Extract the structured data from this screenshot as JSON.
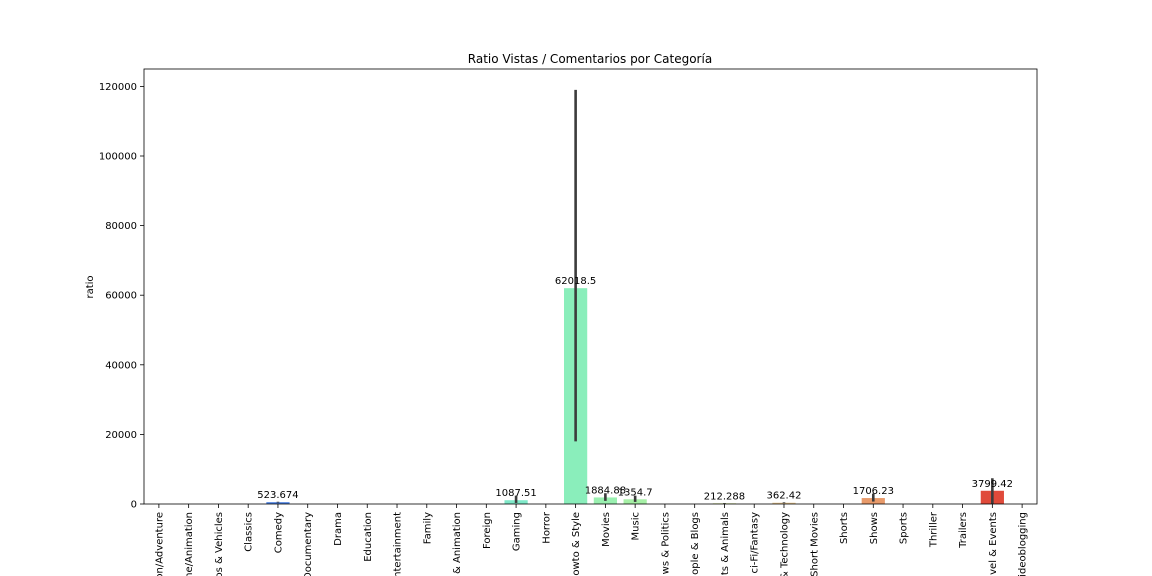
{
  "chart_data": {
    "type": "bar",
    "title": "Ratio Vistas / Comentarios por Categoría",
    "xlabel": "",
    "ylabel": "ratio",
    "ylim": [
      0,
      125000
    ],
    "yticks": [
      0,
      20000,
      40000,
      60000,
      80000,
      100000,
      120000
    ],
    "grid": false,
    "categories": [
      "on/Adventure",
      "me/Animation",
      "os & Vehicles",
      "Classics",
      "Comedy",
      "Documentary",
      "Drama",
      "Education",
      "ntertainment",
      "Family",
      "& Animation",
      "Foreign",
      "Gaming",
      "Horror",
      "owto & Style",
      "Movies",
      "Music",
      "ws & Politics",
      "ople & Blogs",
      "ts & Animals",
      "ci-Fi/Fantasy",
      "& Technology",
      "Short Movies",
      "Shorts",
      "Shows",
      "Sports",
      "Thriller",
      "Trailers",
      "vel & Events",
      "ideoblogging"
    ],
    "values": [
      0,
      0,
      0,
      0,
      523.674,
      0,
      0,
      0,
      0,
      0,
      0,
      0,
      1087.51,
      0,
      62018.5,
      1884.88,
      1354.7,
      0,
      0,
      212.288,
      0,
      362.42,
      0,
      0,
      1706.23,
      0,
      0,
      0,
      3799.42,
      0
    ],
    "labels": [
      "",
      "",
      "",
      "",
      "523.674",
      "",
      "",
      "",
      "",
      "",
      "",
      "",
      "1087.51",
      "",
      "62018.5",
      "1884.88",
      "1354.7",
      "",
      "",
      "212.288",
      "",
      "362.42",
      "",
      "",
      "1706.23",
      "",
      "",
      "",
      "3799.42",
      ""
    ],
    "colors": [
      "#e8e8e8",
      "#e8e8e8",
      "#e8e8e8",
      "#e8e8e8",
      "#4a7fe0",
      "#e8e8e8",
      "#e8e8e8",
      "#e8e8e8",
      "#e8e8e8",
      "#e8e8e8",
      "#e8e8e8",
      "#e8e8e8",
      "#7fe8c8",
      "#e8e8e8",
      "#8aeebb",
      "#9af0b0",
      "#a6f0a6",
      "#e8e8e8",
      "#e8e8e8",
      "#d8e8a0",
      "#e8e8e8",
      "#e8c890",
      "#e8e8e8",
      "#e8e8e8",
      "#e89a6a",
      "#e8e8e8",
      "#e8e8e8",
      "#e8e8e8",
      "#e04a3a",
      "#e8e8e8"
    ],
    "error_bars": [
      null,
      null,
      null,
      null,
      [
        400,
        650
      ],
      null,
      null,
      null,
      null,
      null,
      null,
      null,
      [
        300,
        2400
      ],
      null,
      [
        18000,
        119000
      ],
      [
        900,
        3100
      ],
      [
        600,
        2400
      ],
      null,
      null,
      [
        150,
        280
      ],
      null,
      [
        250,
        480
      ],
      null,
      null,
      [
        700,
        3000
      ],
      null,
      null,
      null,
      [
        0,
        7400
      ],
      null
    ]
  }
}
